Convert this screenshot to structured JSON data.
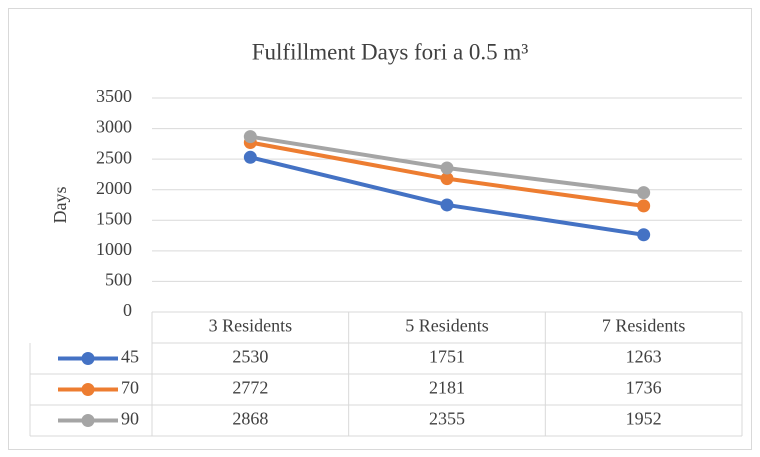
{
  "chart_data": {
    "type": "line",
    "title": "Fulfillment Days fori a 0.5 m³",
    "y_label": "Days",
    "categories": [
      "3 Residents",
      "5 Residents",
      "7 Residents"
    ],
    "series": [
      {
        "name": "45",
        "color": "#4472c4",
        "values": [
          2530,
          1751,
          1263
        ]
      },
      {
        "name": "70",
        "color": "#ed7d31",
        "values": [
          2772,
          2181,
          1736
        ]
      },
      {
        "name": "90",
        "color": "#a5a5a5",
        "values": [
          2868,
          2355,
          1952
        ]
      }
    ],
    "ylim": [
      0,
      3500
    ],
    "yticks": [
      0,
      500,
      1000,
      1500,
      2000,
      2500,
      3000,
      3500
    ],
    "grid": true,
    "data_table": true
  }
}
